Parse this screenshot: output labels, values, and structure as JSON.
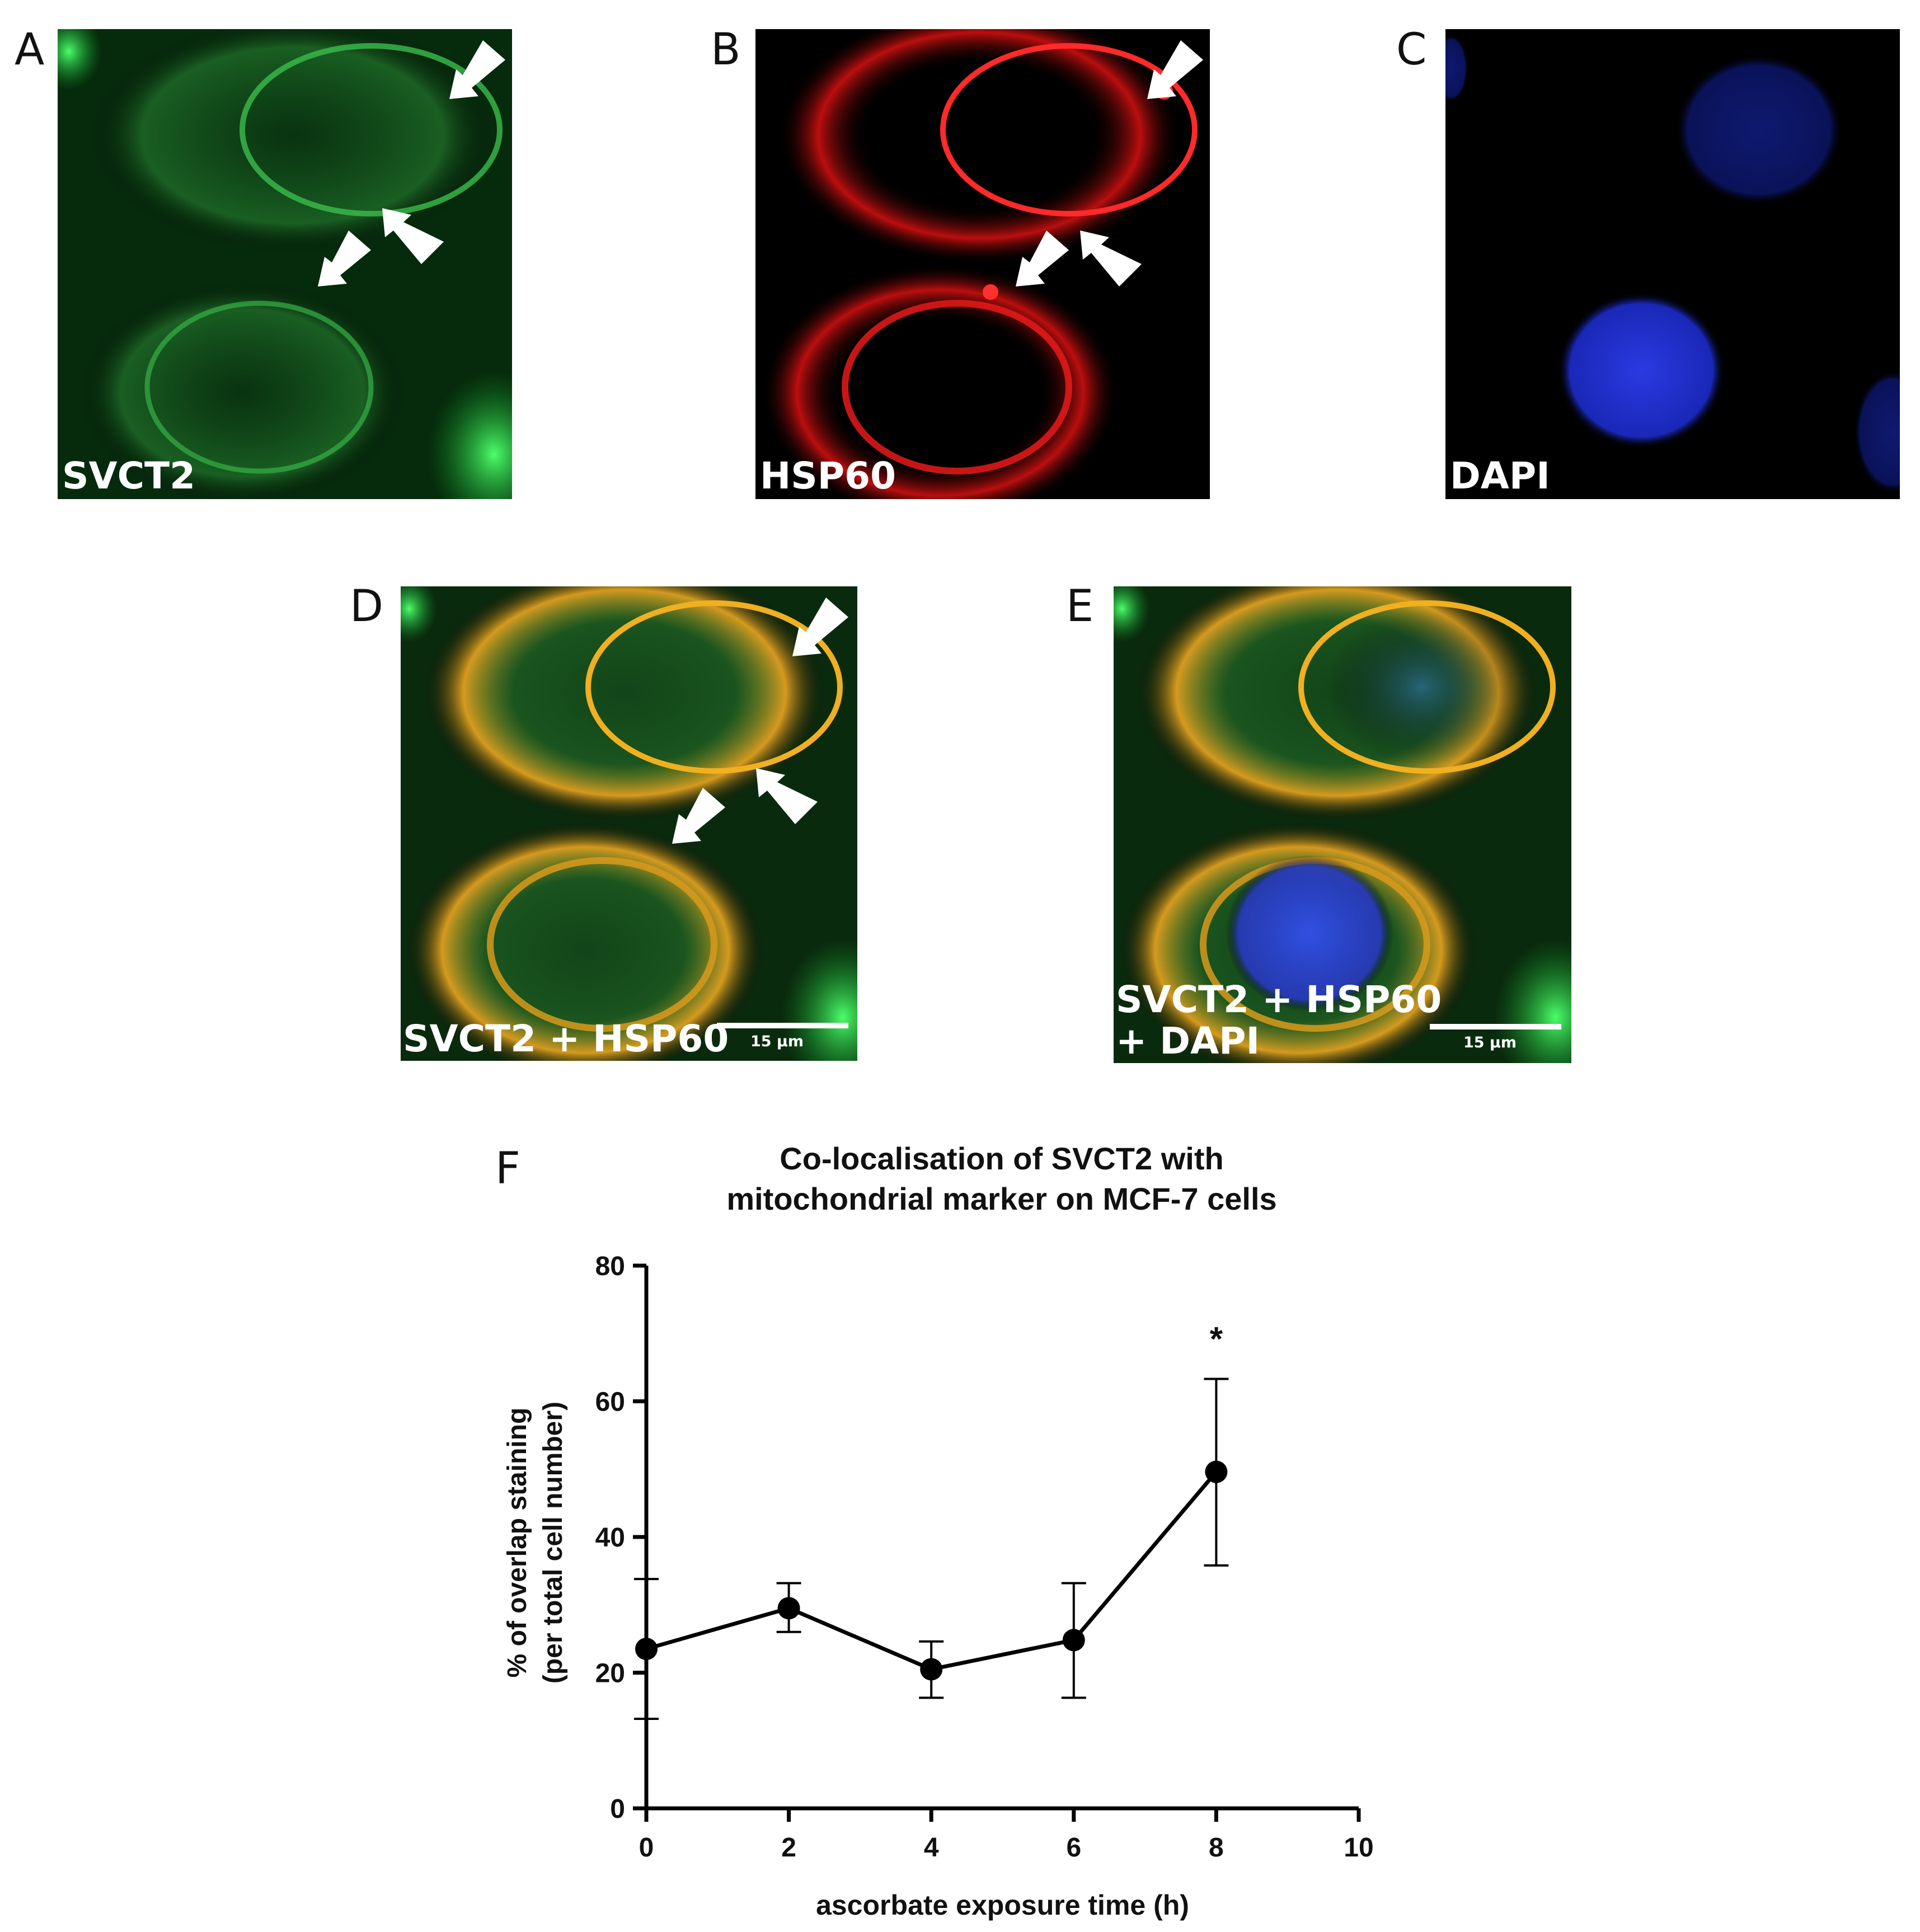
{
  "panels": [
    {
      "letter": "A",
      "label": "SVCT2",
      "channel": "green",
      "color": "#2ed14a"
    },
    {
      "letter": "B",
      "label": "HSP60",
      "channel": "red",
      "color": "#ff2020"
    },
    {
      "letter": "C",
      "label": "DAPI",
      "channel": "blue",
      "color": "#2030c8"
    },
    {
      "letter": "D",
      "label": "SVCT2 + HSP60",
      "channel": "green+red",
      "scale_bar": "15 µm"
    },
    {
      "letter": "E",
      "label_line1": "SVCT2 + HSP60",
      "label_line2": "+ DAPI",
      "channel": "green+red+blue",
      "scale_bar": "15 µm"
    }
  ],
  "chart_panel_letter": "F",
  "chart_data": {
    "type": "line",
    "title_lines": [
      "Co-localisation of SVCT2 with",
      "mitochondrial marker on MCF-7 cells"
    ],
    "xlabel": "ascorbate exposure time (h)",
    "ylabel_lines": [
      "% of overlap staining",
      "(per total cell number)"
    ],
    "xlim": [
      0,
      10
    ],
    "ylim": [
      0,
      80
    ],
    "x_ticks": [
      0,
      2,
      4,
      6,
      8,
      10
    ],
    "y_ticks": [
      0,
      20,
      40,
      60,
      80
    ],
    "x": [
      0,
      2,
      4,
      6,
      8
    ],
    "y": [
      23.5,
      29.5,
      20.5,
      24.8,
      49.6
    ],
    "error_low": [
      13.2,
      26.0,
      16.3,
      16.3,
      35.8
    ],
    "error_high": [
      33.8,
      33.2,
      24.6,
      33.2,
      63.3
    ],
    "annotations": [
      {
        "x": 8,
        "y": 70,
        "text": "*"
      }
    ],
    "grid": false,
    "legend": "none",
    "color": "#000000"
  }
}
